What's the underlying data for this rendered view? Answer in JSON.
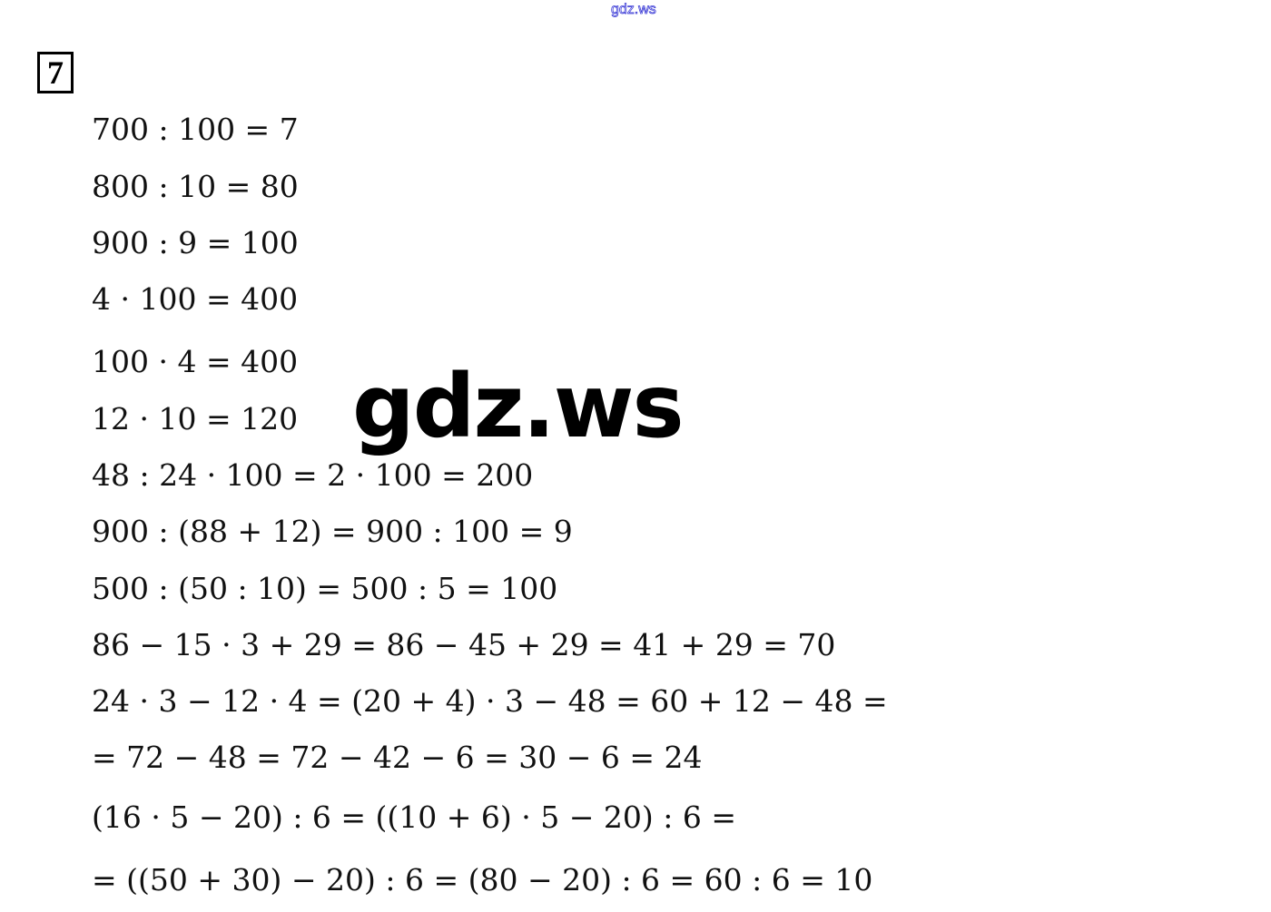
{
  "header": {
    "watermark_small": "gdz.ws"
  },
  "task_number": "7",
  "lines": [
    "700 : 100 = 7",
    "800 : 10 = 80",
    "900 : 9 = 100",
    "4 · 100 = 400",
    "100 · 4 = 400",
    "12 · 10 = 120",
    "48 : 24 · 100 = 2 · 100 = 200",
    "900 : (88 + 12) = 900 : 100 = 9",
    "500 : (50 : 10) = 500 : 5 = 100",
    "86 − 15 · 3 + 29 = 86 − 45 + 29 = 41 + 29 = 70",
    "24 · 3 − 12 · 4 = (20 + 4) · 3 − 48 = 60 + 12 − 48 =",
    "= 72 − 48 = 72 − 42 − 6 = 30 − 6 = 24",
    "(16 · 5 − 20) : 6 = ((10 + 6) · 5 − 20) : 6 =",
    "= ((50 + 30) − 20) : 6 = (80 − 20) : 6 = 60 : 6 = 10"
  ],
  "watermark_large": "gdz.ws"
}
